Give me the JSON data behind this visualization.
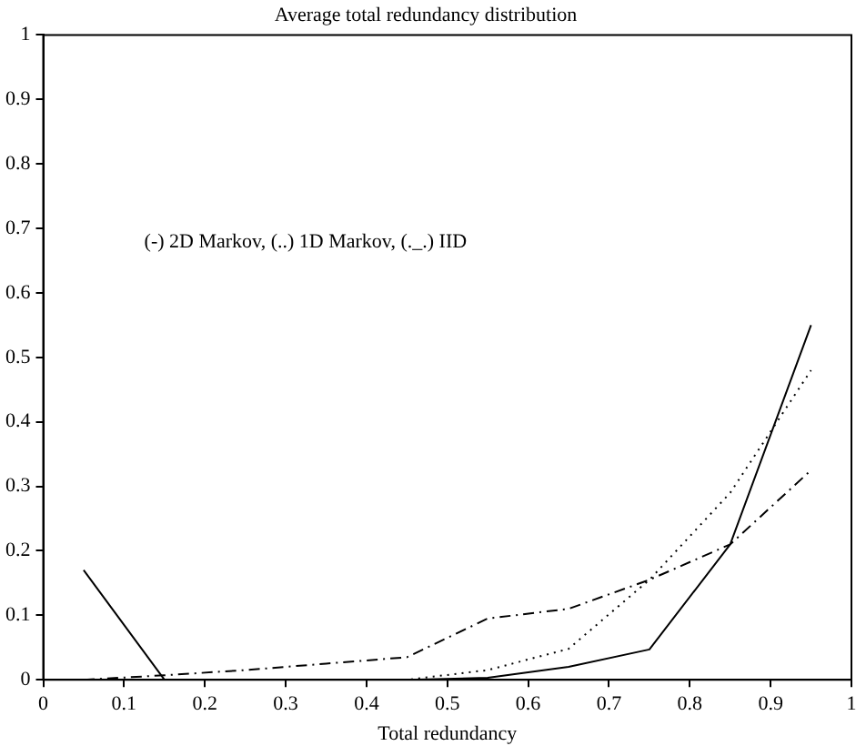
{
  "chart_data": {
    "type": "line",
    "title": "Average total redundancy distribution",
    "xlabel": "Total redundancy",
    "annotations": [
      "(-) 2D Markov, (..) 1D Markov, (._.) IID"
    ],
    "x": [
      0.05,
      0.15,
      0.25,
      0.35,
      0.45,
      0.55,
      0.65,
      0.75,
      0.85,
      0.95
    ],
    "series": [
      {
        "color": "#000000",
        "line_style": "solid",
        "values": [
          0.17,
          0,
          0,
          0,
          0,
          0.003,
          0.02,
          0.047,
          0.21,
          0.55
        ]
      },
      {
        "color": "#000000",
        "line_style": "dotted",
        "values": [
          0,
          0,
          0,
          0,
          0,
          0.015,
          0.048,
          0.155,
          0.29,
          0.48
        ]
      },
      {
        "color": "#000000",
        "line_style": "dashdot",
        "values": [
          0,
          0.007,
          0.015,
          0.025,
          0.035,
          0.095,
          0.11,
          0.155,
          0.21,
          0.325
        ]
      }
    ],
    "xlim": [
      0,
      1
    ],
    "xticks": [
      0,
      0.1,
      0.2,
      0.3,
      0.4,
      0.5,
      0.6,
      0.7,
      0.8,
      0.9,
      1
    ],
    "ylim": [
      0,
      1
    ],
    "yticks": [
      0,
      0.1,
      0.2,
      0.3,
      0.4,
      0.5,
      0.6,
      0.7,
      0.8,
      0.9,
      1
    ],
    "grid": false,
    "legend": false,
    "marker": "none"
  }
}
